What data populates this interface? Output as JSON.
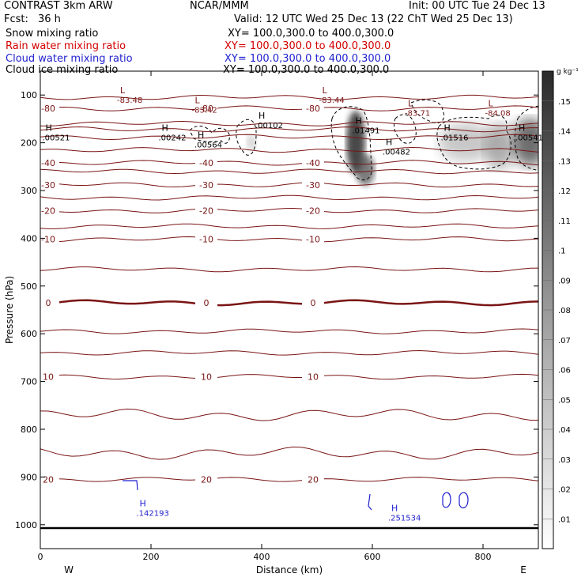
{
  "header": {
    "title": "CONTRAST 3km ARW",
    "center": "NCAR/MMM",
    "init": "Init: 00 UTC Tue 24 Dec 13",
    "fcst_label": "Fcst:",
    "fcst_value": "36 h",
    "valid": "Valid: 12 UTC Wed 25 Dec 13 (22 ChT Wed 25 Dec 13)"
  },
  "fields": [
    {
      "name": "Snow mixing ratio",
      "xy": "XY= 100.0,300.0 to 400.0,300.0",
      "color": "#000000"
    },
    {
      "name": "Rain water mixing ratio",
      "xy": "XY= 100.0,300.0 to 400.0,300.0",
      "color": "#d40000"
    },
    {
      "name": "Cloud water mixing ratio",
      "xy": "XY= 100.0,300.0 to 400.0,300.0",
      "color": "#1f1fd0"
    },
    {
      "name": "Cloud ice mixing ratio",
      "xy": "XY= 100.0,300.0 to 400.0,300.0",
      "color": "#000000"
    }
  ],
  "chart_data": {
    "type": "cross-section contour",
    "ylabel": "Pressure (hPa)",
    "xlabel": "Distance (km)",
    "x_ticks": [
      "0",
      "200",
      "400",
      "600",
      "800"
    ],
    "x_end_labels": {
      "left": "W",
      "right": "E"
    },
    "y_ticks": [
      "100",
      "200",
      "300",
      "400",
      "500",
      "600",
      "700",
      "800",
      "900",
      "1000"
    ],
    "xlim": [
      0,
      900
    ],
    "ylim": [
      1050,
      50
    ],
    "colorbar": {
      "unit": "g kg⁻¹",
      "ticks": [
        ".01",
        ".02",
        ".03",
        ".04",
        ".05",
        ".06",
        ".07",
        ".08",
        ".09",
        ".1",
        ".11",
        ".12",
        ".13",
        ".14",
        ".15"
      ]
    },
    "temperature_contours": [
      {
        "label": "-80",
        "p": 128
      },
      {
        "label": "-40",
        "p": 242
      },
      {
        "label": "-30",
        "p": 288
      },
      {
        "label": "-20",
        "p": 342
      },
      {
        "label": "-10",
        "p": 402
      },
      {
        "label": "0",
        "p": 535
      },
      {
        "label": "10",
        "p": 690
      },
      {
        "label": "20",
        "p": 905
      }
    ],
    "extrema": [
      {
        "kind": "L",
        "value": "-83.48",
        "x": 150,
        "p": 100
      },
      {
        "kind": "L",
        "value": "-83.42",
        "x": 285,
        "p": 120
      },
      {
        "kind": "L",
        "value": "-83.44",
        "x": 515,
        "p": 100
      },
      {
        "kind": "L",
        "value": "-83.71",
        "x": 670,
        "p": 127
      },
      {
        "kind": "L",
        "value": "-84.08",
        "x": 815,
        "p": 127
      },
      {
        "kind": "H",
        "value": ".00521",
        "x": 15,
        "p": 178
      },
      {
        "kind": "H",
        "value": ".00102",
        "x": 400,
        "p": 153
      },
      {
        "kind": "H",
        "value": ".00242",
        "x": 225,
        "p": 178
      },
      {
        "kind": "H",
        "value": ".00564",
        "x": 290,
        "p": 193
      },
      {
        "kind": "H",
        "value": ".01491",
        "x": 575,
        "p": 163
      },
      {
        "kind": "H",
        "value": ".00482",
        "x": 630,
        "p": 208
      },
      {
        "kind": "H",
        "value": ".01516",
        "x": 735,
        "p": 178
      },
      {
        "kind": "H",
        "value": ".00541",
        "x": 870,
        "p": 178
      },
      {
        "kind": "H",
        "value": ".142193",
        "x": 185,
        "p": 965
      },
      {
        "kind": "H",
        "value": ".251534",
        "x": 640,
        "p": 975
      }
    ]
  }
}
